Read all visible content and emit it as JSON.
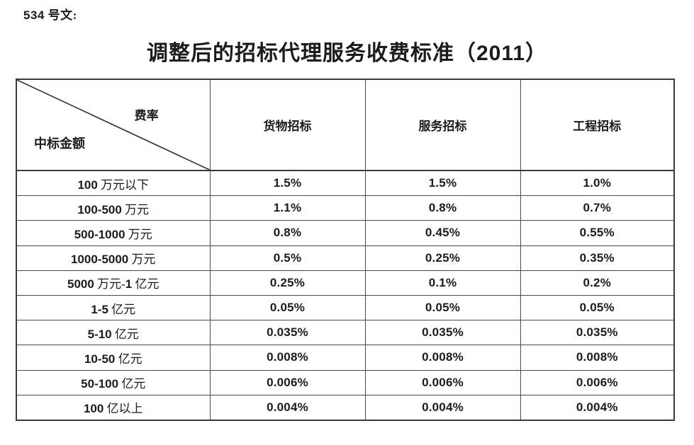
{
  "page": {
    "doc_ref": "534 号文:",
    "title": "调整后的招标代理服务收费标准（2011）"
  },
  "table": {
    "corner": {
      "top_right": "费率",
      "bottom_left": "中标金额"
    },
    "columns": [
      "货物招标",
      "服务招标",
      "工程招标"
    ],
    "rows": [
      {
        "label": "100 万元以下",
        "cells": [
          "1.5%",
          "1.5%",
          "1.0%"
        ]
      },
      {
        "label": "100-500 万元",
        "cells": [
          "1.1%",
          "0.8%",
          "0.7%"
        ]
      },
      {
        "label": "500-1000 万元",
        "cells": [
          "0.8%",
          "0.45%",
          "0.55%"
        ]
      },
      {
        "label": "1000-5000 万元",
        "cells": [
          "0.5%",
          "0.25%",
          "0.35%"
        ]
      },
      {
        "label": "5000 万元-1 亿元",
        "cells": [
          "0.25%",
          "0.1%",
          "0.2%"
        ]
      },
      {
        "label": "1-5 亿元",
        "cells": [
          "0.05%",
          "0.05%",
          "0.05%"
        ]
      },
      {
        "label": "5-10 亿元",
        "cells": [
          "0.035%",
          "0.035%",
          "0.035%"
        ]
      },
      {
        "label": "10-50 亿元",
        "cells": [
          "0.008%",
          "0.008%",
          "0.008%"
        ]
      },
      {
        "label": "50-100 亿元",
        "cells": [
          "0.006%",
          "0.006%",
          "0.006%"
        ]
      },
      {
        "label": "100 亿以上",
        "cells": [
          "0.004%",
          "0.004%",
          "0.004%"
        ]
      }
    ]
  },
  "colors": {
    "background": "#ffffff",
    "text": "#1c1c1c",
    "border_outer": "#3a3a3a",
    "border_inner": "#4a4a4a"
  }
}
